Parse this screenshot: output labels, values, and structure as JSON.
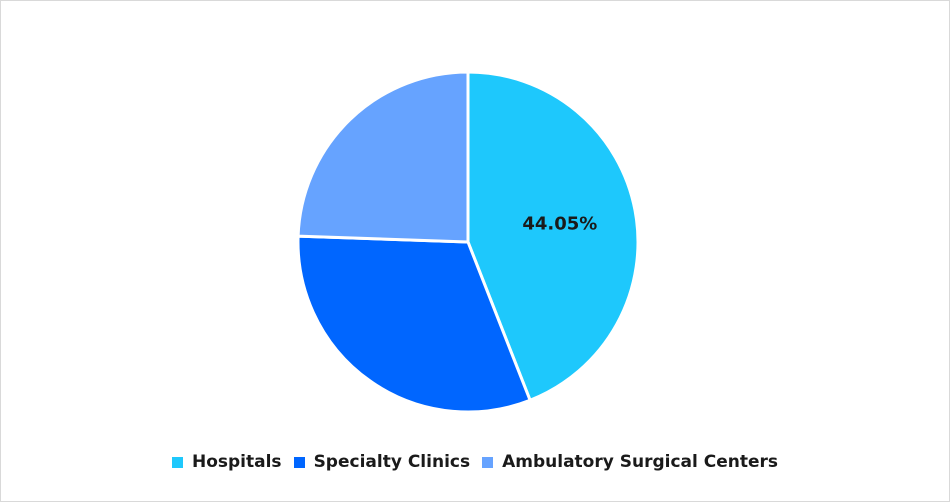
{
  "chart_data": {
    "type": "pie",
    "title": "",
    "categories": [
      "Hospitals",
      "Specialty Clinics",
      "Ambulatory Surgical Centers"
    ],
    "values": [
      44.05,
      31.5,
      24.45
    ],
    "colors": [
      "#1ec8fc",
      "#0066ff",
      "#66a3ff"
    ],
    "data_labels": [
      "44.05%",
      "",
      ""
    ],
    "legend_position": "bottom",
    "start_angle": "12 o'clock",
    "direction": "clockwise"
  }
}
